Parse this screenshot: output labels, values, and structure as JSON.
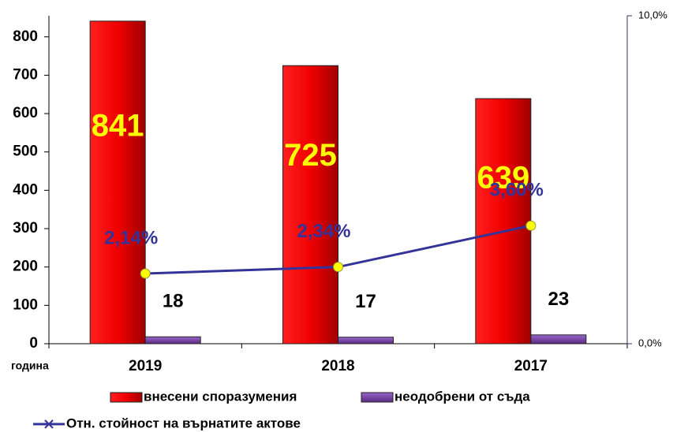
{
  "chart_data": {
    "type": "bar",
    "x_label": "година",
    "categories": [
      "2019",
      "2018",
      "2017"
    ],
    "series": [
      {
        "name": "внесени споразумения",
        "color": "#e00000",
        "values": [
          841,
          725,
          639
        ]
      },
      {
        "name": "неодобрени от съда",
        "color": "#7030a0",
        "values": [
          18,
          17,
          23
        ]
      },
      {
        "name": "Отн. стойност на върнатите актове",
        "color": "#333399",
        "type": "line",
        "axis": "y2",
        "values": [
          2.14,
          2.34,
          3.6
        ],
        "value_labels": [
          "2,14%",
          "2,34%",
          "3,60%"
        ]
      }
    ],
    "ylim": [
      0,
      855
    ],
    "yticks": [
      0,
      100,
      200,
      300,
      400,
      500,
      600,
      700,
      800
    ],
    "y2lim": [
      0,
      10
    ],
    "y2ticks": [
      {
        "value": 0,
        "label": "0,0%"
      },
      {
        "value": 10,
        "label": "10,0%"
      }
    ]
  }
}
